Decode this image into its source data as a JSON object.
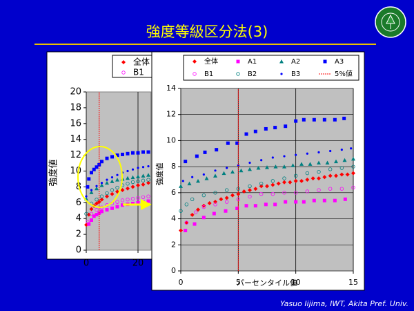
{
  "slide": {
    "title": "強度等級区分法(3)",
    "footer": "Yasuo Iijima, IWT, Akita Pref. Univ."
  },
  "chart_data": [
    {
      "type": "scatter",
      "y_label": "強度値",
      "xlim": [
        0,
        25
      ],
      "xticks": [
        0,
        20
      ],
      "ylim": [
        0,
        20
      ],
      "yticks": [
        0,
        2,
        4,
        6,
        8,
        10,
        12,
        14,
        16,
        18,
        20
      ],
      "grid": "x",
      "series": [
        {
          "name": "全体",
          "color": "#ff0000",
          "marker": "diamond",
          "x": [
            0,
            1,
            2,
            3,
            4,
            5,
            6,
            8,
            10,
            12,
            14,
            16,
            18,
            20,
            22,
            24
          ],
          "values": [
            3.2,
            4.5,
            5.2,
            5.6,
            5.9,
            6.1,
            6.4,
            6.8,
            7.1,
            7.4,
            7.6,
            7.8,
            8,
            8.2,
            8.3,
            8.5
          ]
        },
        {
          "name": "A1",
          "color": "#ff00ff",
          "marker": "square",
          "x": [
            1,
            2,
            3,
            4,
            5,
            6,
            8,
            10,
            12,
            14,
            16,
            18,
            20,
            22,
            24
          ],
          "values": [
            3.3,
            3.8,
            4.3,
            4.5,
            4.7,
            4.9,
            5.1,
            5.3,
            5.5,
            5.7,
            5.8,
            5.9,
            6,
            6.1,
            6.2
          ]
        },
        {
          "name": "A2",
          "color": "#008080",
          "marker": "triangle",
          "x": [
            0,
            2,
            4,
            6,
            8,
            10,
            12,
            14,
            16,
            18,
            20,
            22,
            24
          ],
          "values": [
            6.5,
            7.3,
            7.8,
            8.2,
            8.5,
            8.7,
            8.9,
            9,
            9.1,
            9.2,
            9.3,
            9.4,
            9.5
          ]
        },
        {
          "name": "A3",
          "color": "#0000ff",
          "marker": "square",
          "x": [
            0.5,
            1,
            2,
            3,
            4,
            5,
            6,
            8,
            10,
            12,
            14,
            16,
            18,
            20,
            22,
            24
          ],
          "values": [
            8,
            9,
            9.8,
            10.2,
            10.5,
            10.8,
            11.2,
            11.6,
            11.8,
            12,
            12.1,
            12.2,
            12.3,
            12.3,
            12.4,
            12.4
          ]
        },
        {
          "name": "B1",
          "color": "#ff00ff",
          "marker": "circle-open",
          "x": [
            0.5,
            2,
            4,
            6,
            8,
            10,
            12,
            14,
            16,
            18,
            20,
            22,
            24
          ],
          "values": [
            3.6,
            4.6,
            5.1,
            5.4,
            5.7,
            5.9,
            6.1,
            6.3,
            6.4,
            6.5,
            6.6,
            6.7,
            6.8
          ]
        },
        {
          "name": "B2",
          "color": "#008080",
          "marker": "circle-open",
          "x": [
            0,
            2,
            4,
            6,
            8,
            10,
            12,
            14,
            16,
            18,
            20,
            22,
            24
          ],
          "values": [
            4.6,
            5.9,
            6.4,
            6.8,
            7.2,
            7.6,
            7.9,
            8.2,
            8.4,
            8.6,
            8.7,
            8.8,
            8.9
          ]
        },
        {
          "name": "B3",
          "color": "#0000ff",
          "marker": "dot",
          "x": [
            0,
            2,
            4,
            6,
            8,
            10,
            12,
            14,
            16,
            18,
            20,
            22,
            24
          ],
          "values": [
            6.8,
            7.6,
            8.1,
            8.5,
            8.9,
            9.2,
            9.5,
            9.8,
            10,
            10.2,
            10.4,
            10.5,
            10.6
          ]
        },
        {
          "name": "5%値",
          "color": "#ff0000",
          "marker": "line",
          "x": [
            5,
            5
          ],
          "values": [
            0,
            20
          ]
        }
      ]
    },
    {
      "type": "scatter",
      "x_label": "パーセンタイル値",
      "y_label": "強度値",
      "xlim": [
        0,
        15
      ],
      "xticks": [
        0,
        5,
        10,
        15
      ],
      "ylim": [
        0,
        14
      ],
      "yticks": [
        0,
        2,
        4,
        6,
        8,
        10,
        12,
        14
      ],
      "grid": "both",
      "series": [
        {
          "name": "全体",
          "color": "#ff0000",
          "marker": "diamond",
          "x": [
            0,
            0.5,
            1,
            1.5,
            2,
            2.5,
            3,
            3.5,
            4,
            4.5,
            5,
            5.5,
            6,
            6.5,
            7,
            7.5,
            8,
            8.5,
            9,
            9.5,
            10,
            10.5,
            11,
            11.5,
            12,
            12.5,
            13,
            13.5,
            14,
            14.5,
            15
          ],
          "values": [
            3.1,
            3.7,
            4.3,
            4.7,
            5,
            5.2,
            5.3,
            5.5,
            5.6,
            5.8,
            5.9,
            6.1,
            6.2,
            6.3,
            6.5,
            6.5,
            6.6,
            6.7,
            6.8,
            6.8,
            6.9,
            6.9,
            7,
            7.1,
            7.1,
            7.2,
            7.3,
            7.3,
            7.4,
            7.4,
            7.5
          ]
        },
        {
          "name": "A1",
          "color": "#ff00ff",
          "marker": "square",
          "x": [
            0.4,
            1.2,
            2,
            2.9,
            3.9,
            4.9,
            5.7,
            6.5,
            7.4,
            8.2,
            9.1,
            10,
            10.7,
            11.6,
            12.5,
            13.4,
            14.3
          ],
          "values": [
            3.1,
            3.6,
            4.1,
            4.4,
            4.6,
            4.8,
            5,
            5,
            5.1,
            5.1,
            5.3,
            5.3,
            5.3,
            5.4,
            5.4,
            5.4,
            5.5
          ]
        },
        {
          "name": "A2",
          "color": "#008080",
          "marker": "triangle",
          "x": [
            0,
            0.75,
            1.5,
            2.25,
            3,
            3.75,
            4.5,
            5.25,
            6,
            6.75,
            7.5,
            8.25,
            9,
            9.75,
            10.5,
            11.25,
            12,
            12.75,
            13.5,
            14.25,
            15
          ],
          "values": [
            6.5,
            6.7,
            6.9,
            7.1,
            7.3,
            7.5,
            7.6,
            7.7,
            7.8,
            7.9,
            7.95,
            8,
            8,
            8.1,
            8.2,
            8.2,
            8.3,
            8.3,
            8.4,
            8.5,
            8.6
          ]
        },
        {
          "name": "A3",
          "color": "#0000ff",
          "marker": "square",
          "x": [
            0.4,
            1.4,
            2.1,
            3.1,
            4.1,
            4.9,
            5.7,
            6.5,
            7.4,
            8.2,
            9.1,
            10,
            10.7,
            11.6,
            12.5,
            13.4,
            14.2
          ],
          "values": [
            8.4,
            8.8,
            9.1,
            9.3,
            9.8,
            9.8,
            10.5,
            10.7,
            10.9,
            11,
            11.1,
            11.5,
            11.6,
            11.6,
            11.6,
            11.6,
            11.7
          ]
        },
        {
          "name": "B1",
          "color": "#ff00ff",
          "marker": "circle-open",
          "x": [
            0.5,
            1.3,
            2,
            3,
            4,
            5,
            6,
            7,
            8,
            9,
            10,
            11,
            12,
            13,
            14,
            15
          ],
          "values": [
            3.7,
            4.5,
            4.9,
            5.1,
            5.3,
            5.5,
            5.7,
            5.9,
            5.9,
            6,
            6,
            6.1,
            6.2,
            6.3,
            6.3,
            6.4
          ]
        },
        {
          "name": "B2",
          "color": "#008080",
          "marker": "circle-open",
          "x": [
            0,
            0.5,
            1,
            2,
            3,
            4,
            5,
            6,
            7,
            8,
            9,
            10,
            11,
            12,
            13,
            14,
            15
          ],
          "values": [
            4.6,
            5.1,
            5.5,
            5.8,
            6,
            6.2,
            6.3,
            6.5,
            6.7,
            6.9,
            7.1,
            7.3,
            7.5,
            7.6,
            7.8,
            7.9,
            8
          ]
        },
        {
          "name": "B3",
          "color": "#0000ff",
          "marker": "dot",
          "x": [
            0.2,
            1,
            2,
            3,
            4,
            5,
            6,
            7,
            8,
            9,
            10,
            11,
            12,
            13,
            14,
            14.8
          ],
          "values": [
            6.9,
            7.2,
            7.4,
            7.7,
            7.9,
            8.1,
            8.3,
            8.5,
            8.7,
            8.8,
            8.9,
            9,
            9.1,
            9.2,
            9.3,
            9.4
          ]
        },
        {
          "name": "5%値",
          "color": "#ff0000",
          "marker": "line",
          "x": [
            5,
            5
          ],
          "values": [
            0,
            14
          ]
        }
      ]
    }
  ]
}
